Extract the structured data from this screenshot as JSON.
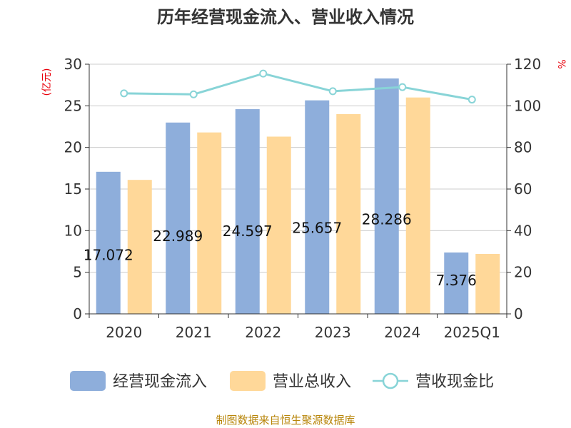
{
  "chart_data": {
    "type": "bar",
    "title": "历年经营现金流入、营业收入情况",
    "categories": [
      "2020",
      "2021",
      "2022",
      "2023",
      "2024",
      "2025Q1"
    ],
    "series": [
      {
        "name": "经营现金流入",
        "kind": "bar",
        "axis": "left",
        "color": "#8eaedb",
        "values": [
          17.072,
          22.989,
          24.597,
          25.657,
          28.286,
          7.376
        ],
        "data_labels": [
          "17.072",
          "22.989",
          "24.597",
          "25.657",
          "28.286",
          "7.376"
        ]
      },
      {
        "name": "营业总收入",
        "kind": "bar",
        "axis": "left",
        "color": "#ffd899",
        "values": [
          16.1,
          21.8,
          21.3,
          24.0,
          26.0,
          7.2
        ]
      },
      {
        "name": "营收现金比",
        "kind": "line",
        "axis": "right",
        "color": "#88d4d7",
        "values": [
          106,
          105.5,
          115.5,
          107,
          109,
          103
        ]
      }
    ],
    "y_left": {
      "unit_label": "(亿元)",
      "range": [
        0,
        30
      ],
      "ticks": [
        0,
        5,
        10,
        15,
        20,
        25,
        30
      ]
    },
    "y_right": {
      "unit_label": "%",
      "range": [
        0,
        120
      ],
      "ticks": [
        0,
        20,
        40,
        60,
        80,
        100,
        120
      ]
    },
    "grid": true,
    "legend_position": "bottom",
    "source": "制图数据来自恒生聚源数据库"
  }
}
